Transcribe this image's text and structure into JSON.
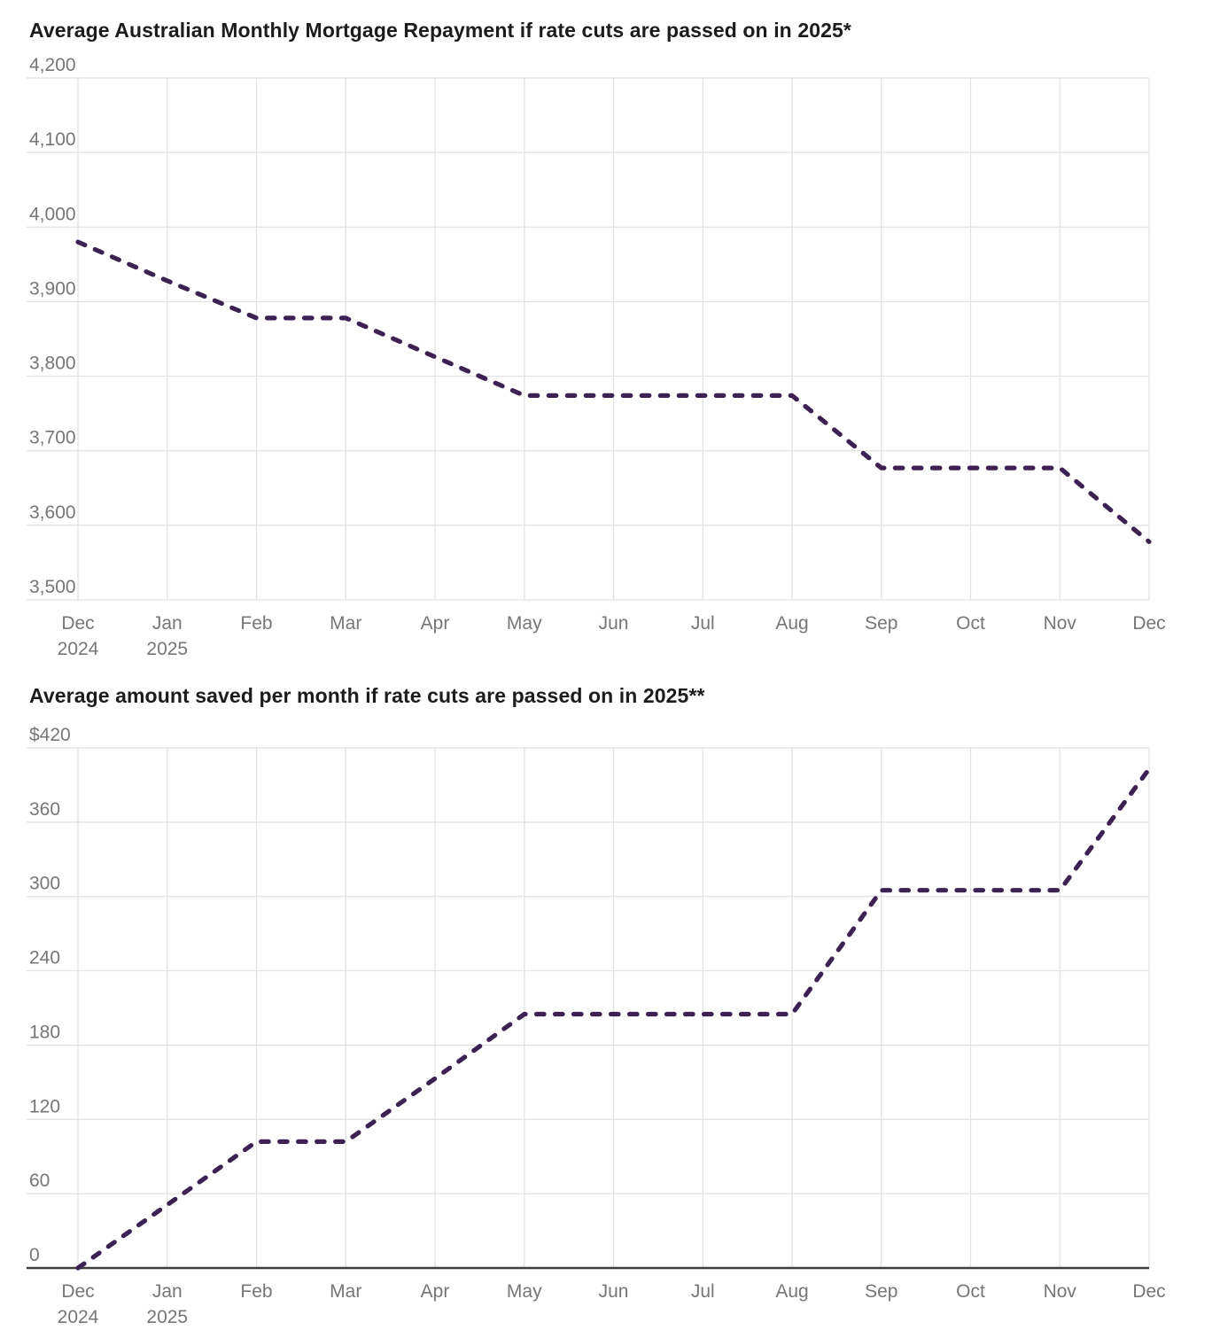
{
  "styles": {
    "background": "#ffffff",
    "title_color": "#1c1c1c",
    "tick_color": "#767676",
    "grid_color": "#e1e1e1",
    "zero_axis_color": "#3f3f3f",
    "line_color": "#3c2252"
  },
  "chart_data": [
    {
      "type": "line",
      "title": "Average Australian Monthly Mortgage Repayment if rate cuts are passed on in 2025*",
      "line_style": "dashed",
      "legend_position": "none",
      "grid": true,
      "zero_axis": false,
      "categories": [
        "Dec 2024",
        "Jan 2025",
        "Feb",
        "Mar",
        "Apr",
        "May",
        "Jun",
        "Jul",
        "Aug",
        "Sep",
        "Oct",
        "Nov",
        "Dec"
      ],
      "values": [
        3980,
        3928,
        3878,
        3878,
        3826,
        3774,
        3774,
        3774,
        3774,
        3677,
        3677,
        3677,
        3578
      ],
      "ylim": [
        3500,
        4200
      ],
      "y_ticks": [
        {
          "label": "4,200",
          "value": 4200
        },
        {
          "label": "4,100",
          "value": 4100
        },
        {
          "label": "4,000",
          "value": 4000
        },
        {
          "label": "3,900",
          "value": 3900
        },
        {
          "label": "3,800",
          "value": 3800
        },
        {
          "label": "3,700",
          "value": 3700
        },
        {
          "label": "3,600",
          "value": 3600
        },
        {
          "label": "3,500",
          "value": 3500
        }
      ]
    },
    {
      "type": "line",
      "title": "Average amount saved per month if rate cuts are passed on in 2025**",
      "line_style": "dashed",
      "legend_position": "none",
      "grid": true,
      "zero_axis": true,
      "categories": [
        "Dec 2024",
        "Jan 2025",
        "Feb",
        "Mar",
        "Apr",
        "May",
        "Jun",
        "Jul",
        "Aug",
        "Sep",
        "Oct",
        "Nov",
        "Dec"
      ],
      "values": [
        0,
        51,
        102,
        102,
        153,
        205,
        205,
        205,
        205,
        305,
        305,
        305,
        403
      ],
      "ylim": [
        0,
        420
      ],
      "y_ticks": [
        {
          "label": "$420",
          "value": 420
        },
        {
          "label": "360",
          "value": 360
        },
        {
          "label": "300",
          "value": 300
        },
        {
          "label": "240",
          "value": 240
        },
        {
          "label": "180",
          "value": 180
        },
        {
          "label": "120",
          "value": 120
        },
        {
          "label": "60",
          "value": 60
        },
        {
          "label": "0",
          "value": 0
        }
      ]
    }
  ]
}
